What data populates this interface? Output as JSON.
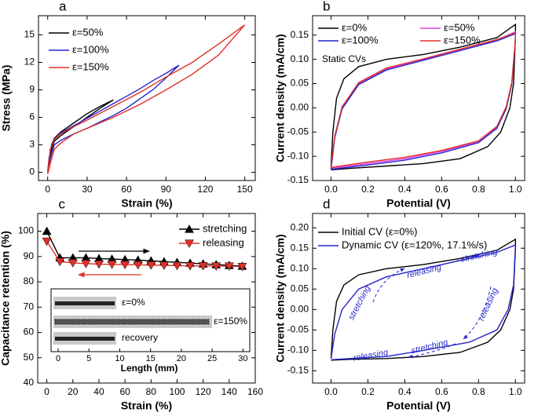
{
  "chart_data": [
    {
      "type": "line",
      "label": "a",
      "xlabel": "Strain (%)",
      "ylabel": "Stress (MPa)",
      "xlim": [
        -7,
        158
      ],
      "ylim": [
        -0.9,
        17.1
      ],
      "xticks": [
        0,
        30,
        60,
        90,
        120,
        150
      ],
      "yticks": [
        0,
        3,
        6,
        9,
        12,
        15
      ],
      "series": [
        {
          "name": "ε=50%",
          "color": "#000000",
          "x": [
            0,
            1,
            3,
            5,
            10,
            20,
            30,
            40,
            50,
            40,
            30,
            20,
            10,
            5,
            2,
            0
          ],
          "values": [
            0,
            1.5,
            3,
            3.7,
            4.4,
            5.4,
            6.4,
            7.2,
            7.9,
            7.0,
            6.0,
            5.0,
            4.0,
            3.4,
            2.0,
            0
          ]
        },
        {
          "name": "ε=100%",
          "color": "#2424cc",
          "x": [
            0,
            2,
            5,
            10,
            20,
            30,
            40,
            50,
            60,
            70,
            80,
            90,
            100,
            90,
            80,
            70,
            60,
            50,
            40,
            30,
            20,
            10,
            5,
            2,
            0
          ],
          "values": [
            0,
            2.5,
            3.6,
            4.3,
            5.1,
            5.9,
            6.7,
            7.5,
            8.3,
            9.1,
            10.0,
            10.8,
            11.7,
            10.3,
            9.0,
            8.0,
            7.0,
            6.2,
            5.5,
            4.8,
            4.2,
            3.5,
            3.0,
            1.5,
            0
          ]
        },
        {
          "name": "ε=150%",
          "color": "#e0302a",
          "x": [
            0,
            2,
            5,
            10,
            20,
            30,
            50,
            70,
            90,
            110,
            130,
            150,
            130,
            110,
            90,
            70,
            50,
            30,
            20,
            10,
            5,
            2,
            0
          ],
          "values": [
            0,
            2.5,
            3.6,
            4.2,
            5.0,
            5.7,
            7.2,
            8.7,
            10.4,
            12.0,
            14.0,
            16.1,
            12.8,
            10.7,
            9.0,
            7.4,
            6.0,
            4.8,
            4.2,
            3.2,
            2.5,
            1.0,
            -0.2
          ]
        }
      ]
    },
    {
      "type": "line",
      "label": "b",
      "xlabel": "Potential (V)",
      "ylabel": "Current density (mA/cm)",
      "annotation": "Static CVs",
      "xlim": [
        -0.1,
        1.05
      ],
      "ylim": [
        -0.15,
        0.19
      ],
      "xticks": [
        {
          "value": 0,
          "label": "0.0"
        },
        {
          "value": 0.2,
          "label": "0.2"
        },
        {
          "value": 0.4,
          "label": "0.4"
        },
        {
          "value": 0.6,
          "label": "0.6"
        },
        {
          "value": 0.8,
          "label": "0.8"
        },
        {
          "value": 1,
          "label": "1.0"
        }
      ],
      "yticks": [
        {
          "value": -0.15,
          "label": "-0.15"
        },
        {
          "value": -0.1,
          "label": "-0.10"
        },
        {
          "value": -0.05,
          "label": "-0.05"
        },
        {
          "value": 0,
          "label": "0.00"
        },
        {
          "value": 0.05,
          "label": "0.05"
        },
        {
          "value": 0.1,
          "label": "0.10"
        },
        {
          "value": 0.15,
          "label": "0.15"
        }
      ],
      "series": [
        {
          "name": "ε=0%",
          "color": "#000000",
          "x": [
            0,
            0.01,
            0.03,
            0.07,
            0.15,
            0.3,
            0.5,
            0.7,
            0.9,
            1,
            1,
            0.99,
            0.97,
            0.92,
            0.85,
            0.7,
            0.5,
            0.3,
            0.1,
            0
          ],
          "values": [
            -0.12,
            -0.05,
            0.02,
            0.06,
            0.085,
            0.1,
            0.11,
            0.125,
            0.145,
            0.172,
            0.15,
            0.05,
            0,
            -0.05,
            -0.08,
            -0.105,
            -0.115,
            -0.12,
            -0.125,
            -0.128
          ]
        },
        {
          "name": "ε=50%",
          "color": "#e040e0",
          "x": [
            0,
            0.02,
            0.06,
            0.15,
            0.3,
            0.5,
            0.7,
            0.9,
            1,
            1,
            0.98,
            0.95,
            0.9,
            0.8,
            0.6,
            0.4,
            0.2,
            0
          ],
          "values": [
            -0.125,
            -0.06,
            0,
            0.05,
            0.08,
            0.1,
            0.12,
            0.14,
            0.157,
            0.14,
            0.05,
            0,
            -0.04,
            -0.07,
            -0.09,
            -0.105,
            -0.115,
            -0.125
          ]
        },
        {
          "name": "ε=100%",
          "color": "#2424cc",
          "x": [
            0,
            0.02,
            0.06,
            0.15,
            0.3,
            0.5,
            0.7,
            0.9,
            1,
            1,
            0.98,
            0.95,
            0.9,
            0.8,
            0.6,
            0.4,
            0.2,
            0
          ],
          "values": [
            -0.127,
            -0.062,
            -0.002,
            0.048,
            0.078,
            0.098,
            0.118,
            0.138,
            0.153,
            0.138,
            0.048,
            -0.002,
            -0.042,
            -0.072,
            -0.093,
            -0.108,
            -0.118,
            -0.127
          ]
        },
        {
          "name": "ε=150%",
          "color": "#e0302a",
          "x": [
            0,
            0.02,
            0.06,
            0.15,
            0.3,
            0.5,
            0.7,
            0.9,
            1,
            1,
            0.98,
            0.95,
            0.9,
            0.8,
            0.6,
            0.4,
            0.2,
            0
          ],
          "values": [
            -0.123,
            -0.058,
            0.002,
            0.052,
            0.082,
            0.101,
            0.121,
            0.141,
            0.155,
            0.142,
            0.052,
            0.002,
            -0.038,
            -0.068,
            -0.088,
            -0.102,
            -0.112,
            -0.123
          ]
        }
      ]
    },
    {
      "type": "line",
      "label": "c",
      "xlabel": "Strain (%)",
      "ylabel": "Capacitance retention (%)",
      "xlim": [
        -7,
        160
      ],
      "ylim": [
        40,
        107
      ],
      "xticks": [
        0,
        20,
        40,
        60,
        80,
        100,
        120,
        140,
        160
      ],
      "yticks": [
        40,
        50,
        60,
        70,
        80,
        90,
        100
      ],
      "x": [
        0,
        10,
        20,
        30,
        40,
        50,
        60,
        70,
        80,
        90,
        100,
        110,
        120,
        130,
        140,
        150
      ],
      "series": [
        {
          "name": "stretching",
          "color": "#000000",
          "marker": "triangle-up",
          "values": [
            100,
            89.5,
            89.5,
            89.5,
            89.2,
            89.0,
            88.8,
            88.6,
            88.3,
            88.0,
            87.7,
            87.4,
            87.1,
            86.8,
            86.5,
            86.2
          ]
        },
        {
          "name": "releasing",
          "color": "#e0302a",
          "marker": "triangle-down",
          "values": [
            96,
            88,
            87.5,
            87.2,
            87.0,
            86.9,
            86.8,
            86.7,
            86.6,
            86.5,
            86.4,
            86.3,
            86.3,
            86.2,
            86.2,
            86.0
          ]
        }
      ],
      "inset": {
        "xlabel": "Length (mm)",
        "xlim": [
          -1.15,
          31.1
        ],
        "xticks": [
          0,
          5,
          10,
          15,
          20,
          25,
          30
        ],
        "labels": [
          "ε=0%",
          "ε=150%",
          "recovery"
        ]
      }
    },
    {
      "type": "line",
      "label": "d",
      "xlabel": "Potential (V)",
      "ylabel": "Current density (mA/cm)",
      "xlim": [
        -0.1,
        1.05
      ],
      "ylim": [
        -0.18,
        0.235
      ],
      "xticks": [
        {
          "value": 0,
          "label": "0.0"
        },
        {
          "value": 0.2,
          "label": "0.2"
        },
        {
          "value": 0.4,
          "label": "0.4"
        },
        {
          "value": 0.6,
          "label": "0.6"
        },
        {
          "value": 0.8,
          "label": "0.8"
        },
        {
          "value": 1,
          "label": "1.0"
        }
      ],
      "yticks": [
        {
          "value": -0.15,
          "label": "-0.15"
        },
        {
          "value": -0.1,
          "label": "-0.10"
        },
        {
          "value": -0.05,
          "label": "-0.05"
        },
        {
          "value": 0,
          "label": "0.00"
        },
        {
          "value": 0.05,
          "label": "0.05"
        },
        {
          "value": 0.1,
          "label": "0.10"
        },
        {
          "value": 0.15,
          "label": "0.15"
        },
        {
          "value": 0.2,
          "label": "0.20"
        }
      ],
      "annotations": [
        "stretching",
        "releasing",
        "stretching",
        "releasing",
        "stretching",
        "releasing"
      ],
      "series": [
        {
          "name": "Initial CV (ε=0%)",
          "color": "#000000",
          "x": [
            0,
            0.01,
            0.03,
            0.07,
            0.15,
            0.3,
            0.5,
            0.7,
            0.9,
            1,
            1,
            0.99,
            0.97,
            0.92,
            0.85,
            0.7,
            0.5,
            0.3,
            0.1,
            0
          ],
          "values": [
            -0.12,
            -0.05,
            0.02,
            0.06,
            0.085,
            0.1,
            0.11,
            0.125,
            0.145,
            0.172,
            0.15,
            0.05,
            0,
            -0.05,
            -0.08,
            -0.105,
            -0.115,
            -0.12,
            -0.122,
            -0.124
          ]
        },
        {
          "name": "Dynamic CV (ε=120%, 17.1%/s)",
          "color": "#2424cc",
          "x": [
            0,
            0.02,
            0.06,
            0.15,
            0.3,
            0.5,
            0.7,
            0.9,
            1,
            0.99,
            0.96,
            0.9,
            0.75,
            0.5,
            0.3,
            0.1,
            0
          ],
          "values": [
            -0.12,
            -0.06,
            0,
            0.05,
            0.08,
            0.1,
            0.12,
            0.14,
            0.158,
            0.06,
            0,
            -0.05,
            -0.08,
            -0.1,
            -0.115,
            -0.12,
            -0.123
          ]
        }
      ]
    }
  ]
}
